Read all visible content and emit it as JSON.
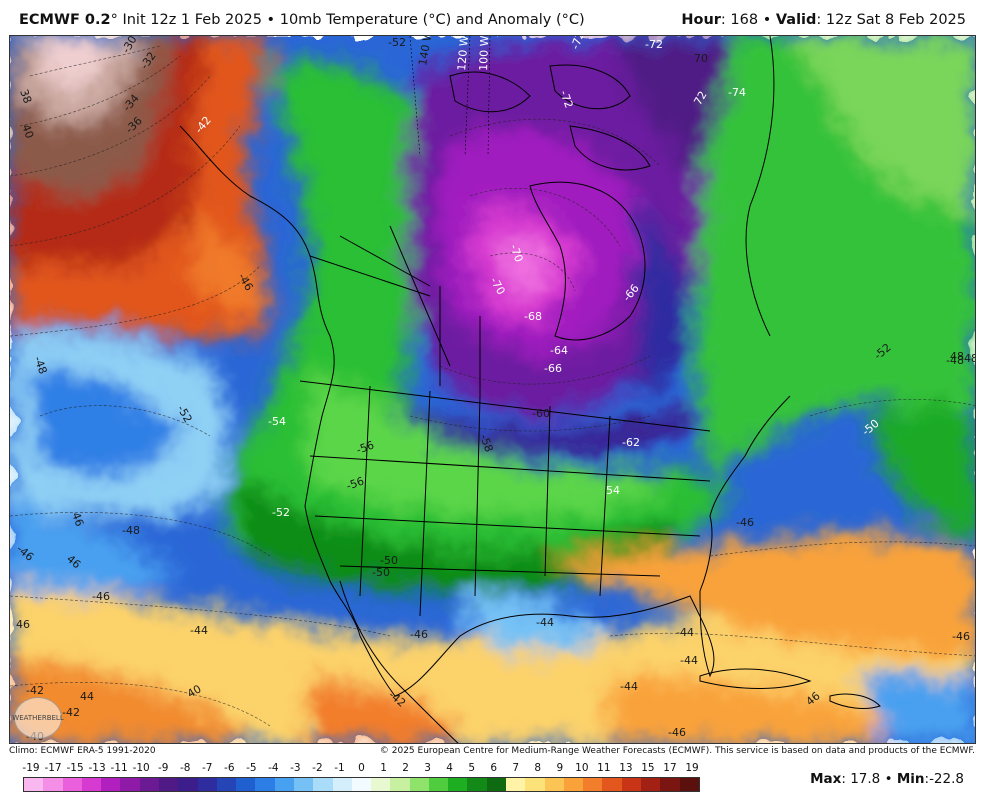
{
  "header": {
    "model": "ECMWF 0.2",
    "degree": "°",
    "init": " Init 12z 1 Feb 2025 • 10mb Temperature (°C) and Anomaly (°C)",
    "hour_label": "Hour",
    "hour_value": ": 168 • ",
    "valid_label": "Valid",
    "valid_value": ": 12z Sat 8 Feb 2025"
  },
  "credits": {
    "climo": "Climo: ECMWF ERA-5 1991-2020",
    "copyright": "© 2025 European Centre for Medium-Range Weather Forecasts (ECMWF). This service is based on data and products of the ECMWF."
  },
  "logo_text": "WEATHERBELL",
  "stats": {
    "max_label": "Max",
    "max_value": ": 17.8 • ",
    "min_label": "Min",
    "min_value": ":-22.8"
  },
  "colorbar": {
    "labels": [
      "-19",
      "-17",
      "-15",
      "-13",
      "-11",
      "-10",
      "-9",
      "-8",
      "-7",
      "-6",
      "-5",
      "-4",
      "-3",
      "-2",
      "-1",
      "0",
      "1",
      "2",
      "3",
      "4",
      "5",
      "6",
      "7",
      "8",
      "9",
      "10",
      "11",
      "13",
      "15",
      "17",
      "19"
    ],
    "colors": [
      "#f9b9f0",
      "#f48ee6",
      "#ea5fdb",
      "#d63ad0",
      "#b21fbf",
      "#8e1aa7",
      "#6c1a93",
      "#4f1a85",
      "#3b1e8c",
      "#2f2ca0",
      "#2544b6",
      "#1f5fd0",
      "#2c7ee6",
      "#48a0f0",
      "#75c1f5",
      "#a8dcf8",
      "#d4eefb",
      "#f2fbff",
      "#e8f8d0",
      "#c7f0a0",
      "#8fe36a",
      "#4fcd3f",
      "#1eae22",
      "#138a17",
      "#0e6b12",
      "#fff3a8",
      "#fde27a",
      "#fcc454",
      "#f9a23a",
      "#f27d2b",
      "#e3561e",
      "#c93416",
      "#a32114",
      "#7b1511",
      "#5a100c"
    ]
  },
  "map_labels": [
    {
      "text": "-30",
      "c": "dark"
    },
    {
      "text": "-32",
      "c": "dark"
    },
    {
      "text": "-34",
      "c": "dark"
    },
    {
      "text": "-36",
      "c": "dark"
    },
    {
      "text": "38",
      "c": "dark"
    },
    {
      "text": "40",
      "c": "dark"
    },
    {
      "text": "-42",
      "c": "light"
    },
    {
      "text": "-52",
      "c": "dark"
    },
    {
      "text": "-72",
      "c": "light"
    },
    {
      "text": "-72",
      "c": "light"
    },
    {
      "text": "-72",
      "c": "light"
    },
    {
      "text": "70",
      "c": "dark"
    },
    {
      "text": "-74",
      "c": "light"
    },
    {
      "text": "72",
      "c": "light"
    },
    {
      "text": "-66",
      "c": "light"
    },
    {
      "text": "-64",
      "c": "light"
    },
    {
      "text": "-68",
      "c": "light"
    },
    {
      "text": "-70",
      "c": "light"
    },
    {
      "text": "-66",
      "c": "light"
    },
    {
      "text": "-60",
      "c": "dark"
    },
    {
      "text": "-58",
      "c": "dark"
    },
    {
      "text": "-56",
      "c": "dark"
    },
    {
      "text": "-54",
      "c": "light"
    },
    {
      "text": "-52",
      "c": "light"
    },
    {
      "text": "-52",
      "c": "dark"
    },
    {
      "text": "-50",
      "c": "dark"
    },
    {
      "text": "-50",
      "c": "light"
    },
    {
      "text": "-48",
      "c": "dark"
    },
    {
      "text": "-48",
      "c": "dark"
    },
    {
      "text": "46",
      "c": "dark"
    },
    {
      "text": "-46",
      "c": "dark"
    },
    {
      "text": "46",
      "c": "dark"
    },
    {
      "text": "-48",
      "c": "dark"
    },
    {
      "text": "-46",
      "c": "dark"
    },
    {
      "text": "46",
      "c": "dark"
    },
    {
      "text": "-44",
      "c": "dark"
    },
    {
      "text": "-44",
      "c": "dark"
    },
    {
      "text": "-44",
      "c": "dark"
    },
    {
      "text": "-46",
      "c": "dark"
    },
    {
      "text": "-42",
      "c": "dark"
    },
    {
      "text": "-40",
      "c": "dark"
    },
    {
      "text": "40",
      "c": "dark"
    },
    {
      "text": "-42",
      "c": "dark"
    },
    {
      "text": "44",
      "c": "dark"
    },
    {
      "text": "-42",
      "c": "dark"
    },
    {
      "text": "-44",
      "c": "dark"
    },
    {
      "text": "-46",
      "c": "dark"
    },
    {
      "text": "-46",
      "c": "dark"
    },
    {
      "text": "48",
      "c": "dark"
    },
    {
      "text": "-46",
      "c": "dark"
    },
    {
      "text": "-50",
      "c": "dark"
    },
    {
      "text": "-52",
      "c": "dark"
    },
    {
      "text": "-48",
      "c": "dark"
    },
    {
      "text": "46",
      "c": "dark"
    },
    {
      "text": "-44",
      "c": "dark"
    },
    {
      "text": "54",
      "c": "light"
    },
    {
      "text": "-56",
      "c": "dark"
    },
    {
      "text": "-62",
      "c": "light"
    },
    {
      "text": "-46",
      "c": "dark"
    },
    {
      "text": "140 W",
      "c": "dark"
    },
    {
      "text": "120 W",
      "c": "light"
    },
    {
      "text": "100 W",
      "c": "light"
    },
    {
      "text": "-70",
      "c": "light"
    }
  ]
}
